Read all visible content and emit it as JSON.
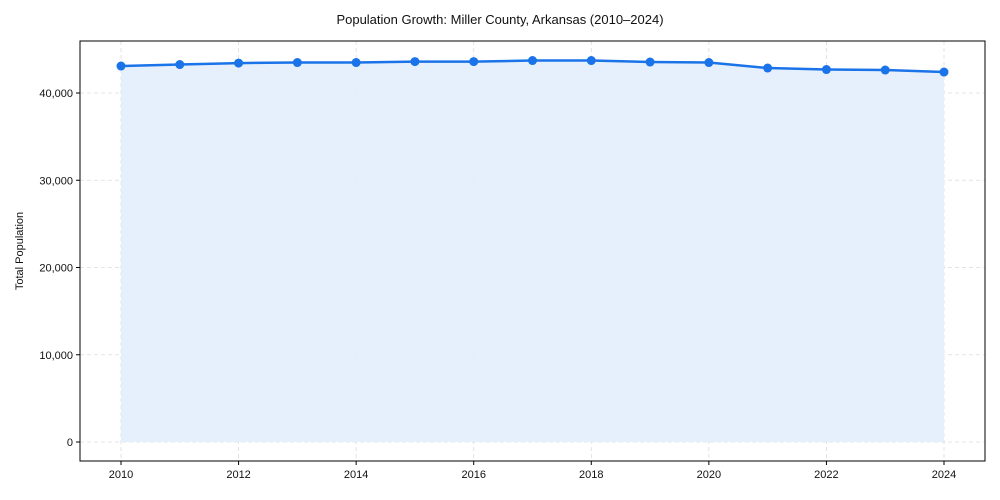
{
  "chart_data": {
    "type": "area",
    "title": "Population Growth: Miller County, Arkansas (2010–2024)",
    "xlabel": "",
    "ylabel": "Total Population",
    "x": [
      2010,
      2011,
      2012,
      2013,
      2014,
      2015,
      2016,
      2017,
      2018,
      2019,
      2020,
      2021,
      2022,
      2023,
      2024
    ],
    "series": [
      {
        "name": "Total Population",
        "values": [
          43090,
          43260,
          43430,
          43490,
          43490,
          43600,
          43600,
          43720,
          43720,
          43550,
          43490,
          42860,
          42690,
          42630,
          42400
        ],
        "color": "#1a73e8",
        "fill": "#e3eefc",
        "marker": "circle"
      }
    ],
    "xticks": [
      2010,
      2012,
      2014,
      2016,
      2018,
      2020,
      2022,
      2024
    ],
    "yticks": [
      0,
      10000,
      20000,
      30000,
      40000
    ],
    "ytick_labels": [
      "0",
      "10,000",
      "20,000",
      "30,000",
      "40,000"
    ],
    "xlim": [
      2008.7,
      2025.1
    ],
    "ylim": [
      -2200,
      46000
    ],
    "grid": true,
    "legend": null
  },
  "labels": {
    "title": "Population Growth: Miller County, Arkansas (2010–2024)",
    "ylabel": "Total Population"
  }
}
